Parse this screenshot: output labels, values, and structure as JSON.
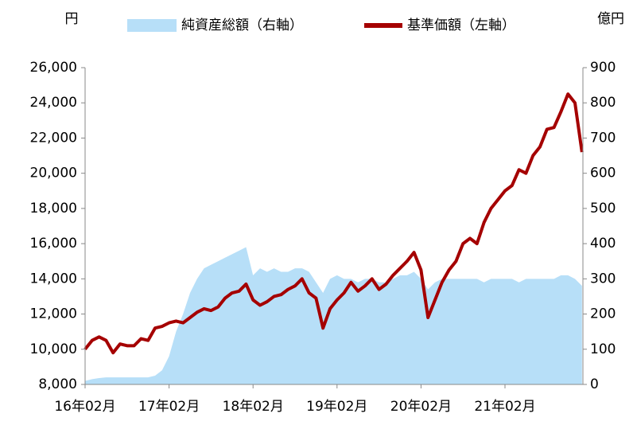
{
  "chart_data": {
    "type": "line-area",
    "y_label": "円",
    "y2_label": "億円",
    "categories": [
      "16年02月",
      null,
      null,
      null,
      null,
      null,
      null,
      null,
      null,
      null,
      null,
      null,
      "17年02月",
      null,
      null,
      null,
      null,
      null,
      null,
      null,
      null,
      null,
      null,
      null,
      "18年02月",
      null,
      null,
      null,
      null,
      null,
      null,
      null,
      null,
      null,
      null,
      null,
      "19年02月",
      null,
      null,
      null,
      null,
      null,
      null,
      null,
      null,
      null,
      null,
      null,
      "20年02月",
      null,
      null,
      null,
      null,
      null,
      null,
      null,
      null,
      null,
      null,
      null,
      "21年02月",
      null,
      null,
      null,
      null,
      null,
      null,
      null,
      null,
      null,
      null,
      null
    ],
    "series": [
      {
        "name": "純資産総額（右軸）",
        "type": "area",
        "axis": "y2",
        "color": "#b7dff8",
        "values": [
          10,
          15,
          18,
          20,
          20,
          20,
          20,
          20,
          20,
          20,
          25,
          40,
          80,
          150,
          200,
          260,
          300,
          330,
          340,
          350,
          360,
          370,
          380,
          390,
          310,
          330,
          320,
          330,
          320,
          320,
          330,
          330,
          320,
          290,
          260,
          300,
          310,
          300,
          300,
          290,
          300,
          300,
          290,
          290,
          300,
          310,
          310,
          320,
          300,
          270,
          290,
          300,
          300,
          300,
          300,
          300,
          300,
          290,
          300,
          300,
          300,
          300,
          290,
          300,
          300,
          300,
          300,
          300,
          310,
          310,
          300,
          280
        ]
      },
      {
        "name": "基準価額（左軸）",
        "type": "line",
        "color": "#a50000",
        "values": [
          10000,
          10500,
          10700,
          10500,
          9800,
          10300,
          10200,
          10200,
          10600,
          10500,
          11200,
          11300,
          11500,
          11600,
          11500,
          11800,
          12100,
          12300,
          12200,
          12400,
          12900,
          13200,
          13300,
          13700,
          12800,
          12500,
          12700,
          13000,
          13100,
          13400,
          13600,
          14000,
          13200,
          12900,
          11200,
          12300,
          12800,
          13200,
          13800,
          13300,
          13600,
          14000,
          13400,
          13700,
          14200,
          14600,
          15000,
          15500,
          14500,
          11800,
          12800,
          13800,
          14500,
          15000,
          16000,
          16300,
          16000,
          17200,
          18000,
          18500,
          19000,
          19300,
          20200,
          20000,
          21000,
          21500,
          22500,
          22600,
          23500,
          24500,
          24000,
          21200
        ]
      }
    ],
    "ylim": [
      8000,
      26000
    ],
    "yticks": [
      {
        "value": 8000,
        "label": "8,000"
      },
      {
        "value": 10000,
        "label": "10,000"
      },
      {
        "value": 12000,
        "label": "12,000"
      },
      {
        "value": 14000,
        "label": "14,000"
      },
      {
        "value": 16000,
        "label": "16,000"
      },
      {
        "value": 18000,
        "label": "18,000"
      },
      {
        "value": 20000,
        "label": "20,000"
      },
      {
        "value": 22000,
        "label": "22,000"
      },
      {
        "value": 24000,
        "label": "24,000"
      },
      {
        "value": 26000,
        "label": "26,000"
      }
    ],
    "y2lim": [
      0,
      900
    ],
    "y2ticks": [
      0,
      100,
      200,
      300,
      400,
      500,
      600,
      700,
      800,
      900
    ]
  }
}
